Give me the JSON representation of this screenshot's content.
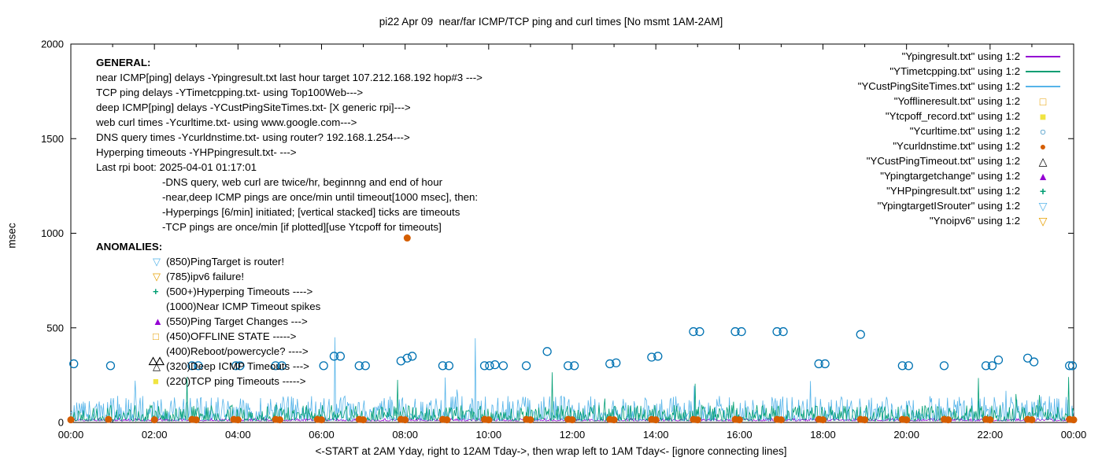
{
  "chart_data": {
    "type": "line+scatter",
    "title": "pi22 Apr 09  near/far ICMP/TCP ping and curl times [No msmt 1AM-2AM]",
    "xlabel": "<-START at 2AM Yday, right to 12AM Tday->, then wrap left to 1AM Tday<- [ignore connecting lines]",
    "ylabel": "msec",
    "ylim": [
      0,
      2000
    ],
    "y_ticks": [
      0,
      500,
      1000,
      1500,
      2000
    ],
    "x_range_hours": [
      0,
      24
    ],
    "grid": false,
    "legend_position": "top-right",
    "x_ticks": [
      {
        "t": 0,
        "label": "00:00"
      },
      {
        "t": 2,
        "label": "02:00"
      },
      {
        "t": 4,
        "label": "04:00"
      },
      {
        "t": 6,
        "label": "06:00"
      },
      {
        "t": 8,
        "label": "08:00"
      },
      {
        "t": 10,
        "label": "10:00"
      },
      {
        "t": 12,
        "label": "12:00"
      },
      {
        "t": 14,
        "label": "14:00"
      },
      {
        "t": 16,
        "label": "16:00"
      },
      {
        "t": 18,
        "label": "18:00"
      },
      {
        "t": 20,
        "label": "20:00"
      },
      {
        "t": 22,
        "label": "22:00"
      },
      {
        "t": 24,
        "label": "00:00"
      }
    ],
    "series": [
      {
        "name": "Ypingresult.txt",
        "type": "line",
        "color": "#9400D3",
        "baseline": 8,
        "noise": 14,
        "burst": 0,
        "seed": 11,
        "spikes": []
      },
      {
        "name": "YCustPingSiteTimes.txt",
        "type": "line",
        "color": "#56B4E9",
        "baseline": 10,
        "noise": 130,
        "burst": 150,
        "seed": 33,
        "spikes": [
          [
            3.35,
            130
          ],
          [
            6.32,
            450
          ],
          [
            7.6,
            120
          ],
          [
            9.68,
            445
          ],
          [
            10.5,
            110
          ],
          [
            12.3,
            90
          ],
          [
            16.6,
            95
          ],
          [
            19.3,
            100
          ],
          [
            23.15,
            120
          ]
        ]
      },
      {
        "name": "YTimetcpping.txt",
        "type": "line",
        "color": "#009E73",
        "baseline": 8,
        "noise": 85,
        "burst": 120,
        "seed": 22,
        "spikes": [
          [
            2.78,
            240
          ],
          [
            5.2,
            80
          ],
          [
            7.82,
            225
          ],
          [
            11.52,
            265
          ],
          [
            13.4,
            90
          ],
          [
            14.93,
            205
          ],
          [
            21.72,
            235
          ],
          [
            23.87,
            240
          ]
        ]
      },
      {
        "name": "Ycurltime.txt",
        "type": "scatter",
        "marker": "circle-open",
        "color": "#0072B2",
        "points": [
          [
            0.07,
            310
          ],
          [
            0.95,
            300
          ],
          [
            2.9,
            300
          ],
          [
            3.05,
            300
          ],
          [
            3.95,
            300
          ],
          [
            4.05,
            300
          ],
          [
            4.9,
            300
          ],
          [
            5.05,
            300
          ],
          [
            6.05,
            300
          ],
          [
            6.3,
            350
          ],
          [
            6.45,
            350
          ],
          [
            6.9,
            300
          ],
          [
            7.05,
            300
          ],
          [
            7.9,
            325
          ],
          [
            8.05,
            340
          ],
          [
            8.17,
            350
          ],
          [
            8.9,
            300
          ],
          [
            9.05,
            300
          ],
          [
            9.9,
            300
          ],
          [
            10.02,
            300
          ],
          [
            10.15,
            305
          ],
          [
            10.35,
            300
          ],
          [
            10.9,
            300
          ],
          [
            11.4,
            375
          ],
          [
            11.9,
            300
          ],
          [
            12.05,
            300
          ],
          [
            12.9,
            310
          ],
          [
            13.05,
            315
          ],
          [
            13.9,
            345
          ],
          [
            14.05,
            350
          ],
          [
            14.9,
            480
          ],
          [
            15.05,
            480
          ],
          [
            15.9,
            480
          ],
          [
            16.05,
            480
          ],
          [
            16.9,
            480
          ],
          [
            17.05,
            480
          ],
          [
            17.9,
            310
          ],
          [
            18.05,
            310
          ],
          [
            18.9,
            465
          ],
          [
            19.9,
            300
          ],
          [
            20.05,
            300
          ],
          [
            20.9,
            300
          ],
          [
            21.9,
            300
          ],
          [
            22.05,
            300
          ],
          [
            22.2,
            330
          ],
          [
            22.9,
            340
          ],
          [
            23.05,
            320
          ],
          [
            23.9,
            300
          ],
          [
            23.97,
            300
          ]
        ]
      },
      {
        "name": "Ycurldnstime.txt",
        "type": "scatter",
        "marker": "circle-filled",
        "color": "#D55E00",
        "points": [
          [
            0,
            14
          ],
          [
            0.9,
            16
          ],
          [
            2,
            14
          ],
          [
            2.9,
            16
          ],
          [
            3,
            14
          ],
          [
            3.9,
            16
          ],
          [
            4,
            14
          ],
          [
            4.9,
            16
          ],
          [
            5,
            14
          ],
          [
            5.9,
            16
          ],
          [
            6,
            14
          ],
          [
            6.9,
            16
          ],
          [
            7,
            14
          ],
          [
            7.9,
            16
          ],
          [
            8,
            14
          ],
          [
            8.05,
            975
          ],
          [
            8.9,
            16
          ],
          [
            9,
            14
          ],
          [
            9.9,
            16
          ],
          [
            10,
            14
          ],
          [
            10.9,
            16
          ],
          [
            11,
            14
          ],
          [
            11.9,
            16
          ],
          [
            12,
            14
          ],
          [
            12.9,
            16
          ],
          [
            13,
            14
          ],
          [
            13.9,
            16
          ],
          [
            14,
            14
          ],
          [
            14.9,
            16
          ],
          [
            15,
            14
          ],
          [
            15.9,
            16
          ],
          [
            16,
            14
          ],
          [
            16.9,
            16
          ],
          [
            17,
            14
          ],
          [
            17.9,
            16
          ],
          [
            18,
            14
          ],
          [
            18.9,
            16
          ],
          [
            19,
            14
          ],
          [
            19.9,
            16
          ],
          [
            20,
            14
          ],
          [
            20.9,
            16
          ],
          [
            21,
            14
          ],
          [
            21.9,
            16
          ],
          [
            22,
            14
          ],
          [
            22.9,
            16
          ],
          [
            23,
            14
          ],
          [
            23.9,
            16
          ],
          [
            24,
            14
          ]
        ]
      },
      {
        "name": "YCustPingTimeout.txt",
        "type": "scatter",
        "marker": "triangle-open",
        "color": "#000000",
        "points": [
          [
            1.97,
            320
          ],
          [
            2.13,
            320
          ]
        ]
      }
    ]
  },
  "general": {
    "title": "GENERAL:",
    "lines": [
      "near ICMP[ping] delays -Ypingresult.txt last hour target 107.212.168.192 hop#3 --->",
      "TCP ping delays -YTimetcpping.txt- using Top100Web--->",
      "deep ICMP[ping] delays -YCustPingSiteTimes.txt- [X generic rpi]--->",
      "web curl times -Ycurltime.txt- using www.google.com--->",
      "DNS query times -Ycurldnstime.txt- using router? 192.168.1.254--->",
      "Hyperping timeouts -YHPpingresult.txt- --->",
      "Last rpi boot: 2025-04-01 01:17:01"
    ],
    "notes": [
      "-DNS query, web curl are twice/hr, beginnng and end of hour",
      "-near,deep ICMP pings are once/min until timeout[1000 msec], then:",
      "-Hyperpings [6/min] initiated; [vertical stacked] ticks are timeouts",
      "-TCP pings are once/min [if plotted][use Ytcpoff for timeouts]"
    ]
  },
  "anomalies": {
    "title": "ANOMALIES:",
    "items": [
      {
        "marker": "triangle-down",
        "color": "#56B4E9",
        "text": "(850)PingTarget is router!"
      },
      {
        "marker": "triangle-down",
        "color": "#E69F00",
        "text": "(785)ipv6 failure!"
      },
      {
        "marker": "plus",
        "color": "#009E73",
        "text": "(500+)Hyperping Timeouts ---->"
      },
      {
        "marker": "none",
        "color": "",
        "text": "(1000)Near ICMP Timeout spikes"
      },
      {
        "marker": "triangle-filled",
        "color": "#9400D3",
        "text": "(550)Ping Target Changes --->"
      },
      {
        "marker": "square-open",
        "color": "#E69F00",
        "text": "(450)OFFLINE STATE ----->"
      },
      {
        "marker": "none",
        "color": "",
        "text": "(400)Reboot/powercycle? ---->"
      },
      {
        "marker": "triangle-open",
        "color": "#000000",
        "text": "(320)Deep ICMP Timeouts --->"
      },
      {
        "marker": "square-filled",
        "color": "#F0E442",
        "text": "(220)TCP ping Timeouts ----->"
      }
    ]
  },
  "legend": {
    "items": [
      {
        "label": "\"Ypingresult.txt\" using 1:2",
        "swatch": "line",
        "color": "#9400D3"
      },
      {
        "label": "\"YTimetcpping.txt\" using 1:2",
        "swatch": "line",
        "color": "#009E73"
      },
      {
        "label": "\"YCustPingSiteTimes.txt\" using 1:2",
        "swatch": "line",
        "color": "#56B4E9"
      },
      {
        "label": "\"Yofflineresult.txt\" using 1:2",
        "swatch": "square-open",
        "color": "#E69F00"
      },
      {
        "label": "\"Ytcpoff_record.txt\" using 1:2",
        "swatch": "square-filled",
        "color": "#F0E442"
      },
      {
        "label": "\"Ycurltime.txt\" using 1:2",
        "swatch": "circle-open",
        "color": "#0072B2"
      },
      {
        "label": "\"Ycurldnstime.txt\" using 1:2",
        "swatch": "circle-filled",
        "color": "#D55E00"
      },
      {
        "label": "\"YCustPingTimeout.txt\" using 1:2",
        "swatch": "triangle-open",
        "color": "#000000"
      },
      {
        "label": "\"Ypingtargetchange\" using 1:2",
        "swatch": "triangle-filled",
        "color": "#9400D3"
      },
      {
        "label": "\"YHPpingresult.txt\" using 1:2",
        "swatch": "plus",
        "color": "#009E73"
      },
      {
        "label": "\"YpingtargetISrouter\" using 1:2",
        "swatch": "triangle-down-open",
        "color": "#56B4E9"
      },
      {
        "label": "\"Ynoipv6\" using 1:2",
        "swatch": "triangle-down-open",
        "color": "#E69F00"
      }
    ]
  }
}
